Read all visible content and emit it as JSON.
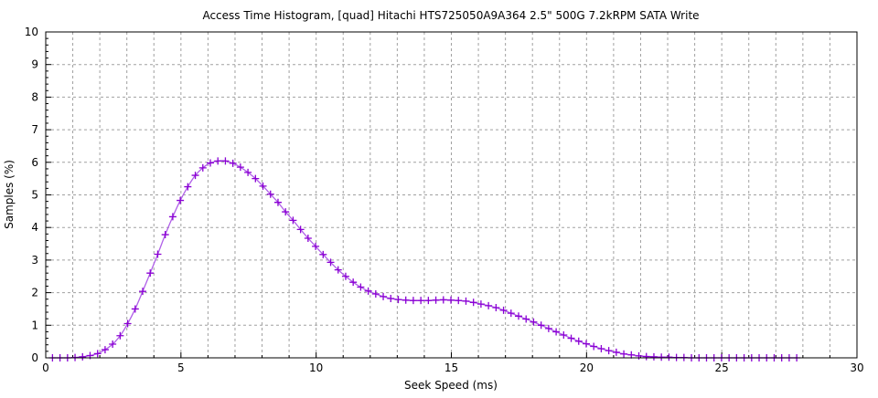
{
  "chart_data": {
    "type": "line",
    "title": "Access Time Histogram, [quad] Hitachi HTS725050A9A364 2.5\" 500G 7.2kRPM SATA Write",
    "xlabel": "Seek Speed (ms)",
    "ylabel": "Samples (%)",
    "xlim": [
      0,
      30
    ],
    "ylim": [
      0,
      10
    ],
    "xticks": [
      "0",
      "5",
      "10",
      "15",
      "20",
      "25",
      "30"
    ],
    "yticks": [
      "0",
      "1",
      "2",
      "3",
      "4",
      "5",
      "6",
      "7",
      "8",
      "9",
      "10"
    ],
    "grid": true,
    "marker": "+",
    "colors": {
      "line": "#b060e8",
      "marker": "#8a00d4",
      "grid": "#a0a0a0"
    },
    "x_start": 0.25,
    "x_step": 0.278,
    "values": [
      0,
      0,
      0,
      0.01,
      0.03,
      0.07,
      0.13,
      0.25,
      0.42,
      0.68,
      1.05,
      1.5,
      2.04,
      2.6,
      3.18,
      3.78,
      4.33,
      4.83,
      5.25,
      5.6,
      5.83,
      5.98,
      6.04,
      6.04,
      5.97,
      5.85,
      5.69,
      5.5,
      5.27,
      5.02,
      4.77,
      4.48,
      4.22,
      3.94,
      3.67,
      3.42,
      3.17,
      2.93,
      2.7,
      2.5,
      2.32,
      2.17,
      2.05,
      1.96,
      1.88,
      1.82,
      1.79,
      1.77,
      1.76,
      1.76,
      1.76,
      1.77,
      1.78,
      1.77,
      1.76,
      1.74,
      1.7,
      1.65,
      1.6,
      1.54,
      1.46,
      1.37,
      1.28,
      1.19,
      1.1,
      1.0,
      0.9,
      0.8,
      0.7,
      0.6,
      0.51,
      0.43,
      0.35,
      0.28,
      0.22,
      0.17,
      0.12,
      0.09,
      0.06,
      0.04,
      0.03,
      0.02,
      0.02,
      0.01,
      0.01,
      0,
      0,
      0,
      0,
      0,
      0,
      0,
      0,
      0,
      0,
      0,
      0,
      0,
      0,
      0
    ]
  }
}
